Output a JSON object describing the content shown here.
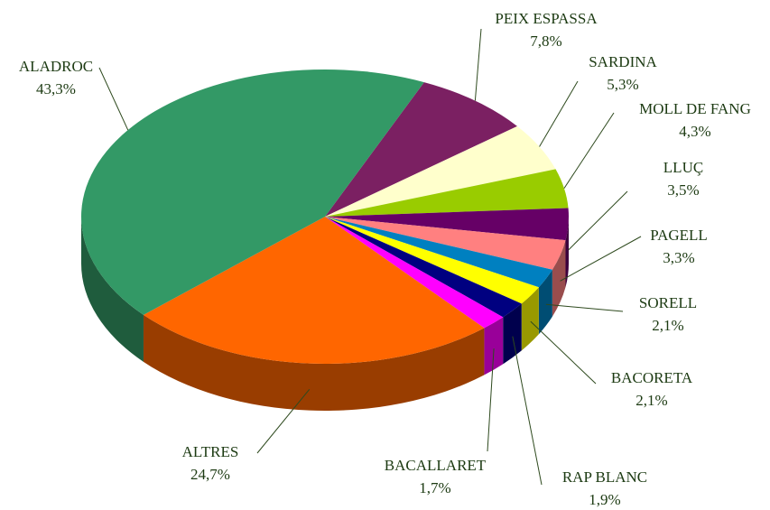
{
  "chart_data": {
    "type": "pie",
    "categories": [
      "PEIX ESPASSA",
      "SARDINA",
      "MOLL DE FANG",
      "LLUÇ",
      "PAGELL",
      "SORELL",
      "BACORETA",
      "RAP BLANC",
      "BACALLARET",
      "ALTRES",
      "ALADROC"
    ],
    "values": [
      7.8,
      5.3,
      4.3,
      3.5,
      3.3,
      2.1,
      2.1,
      1.9,
      1.7,
      24.7,
      43.3
    ],
    "value_labels": [
      "7,8%",
      "5,3%",
      "4,3%",
      "3,5%",
      "3,3%",
      "2,1%",
      "2,1%",
      "1,9%",
      "1,7%",
      "24,7%",
      "43,3%"
    ],
    "colors": [
      "#7b2062",
      "#ffffcc",
      "#99cc00",
      "#660066",
      "#ff8080",
      "#0080c0",
      "#ffff00",
      "#000080",
      "#ff00ff",
      "#ff6600",
      "#339966"
    ]
  }
}
